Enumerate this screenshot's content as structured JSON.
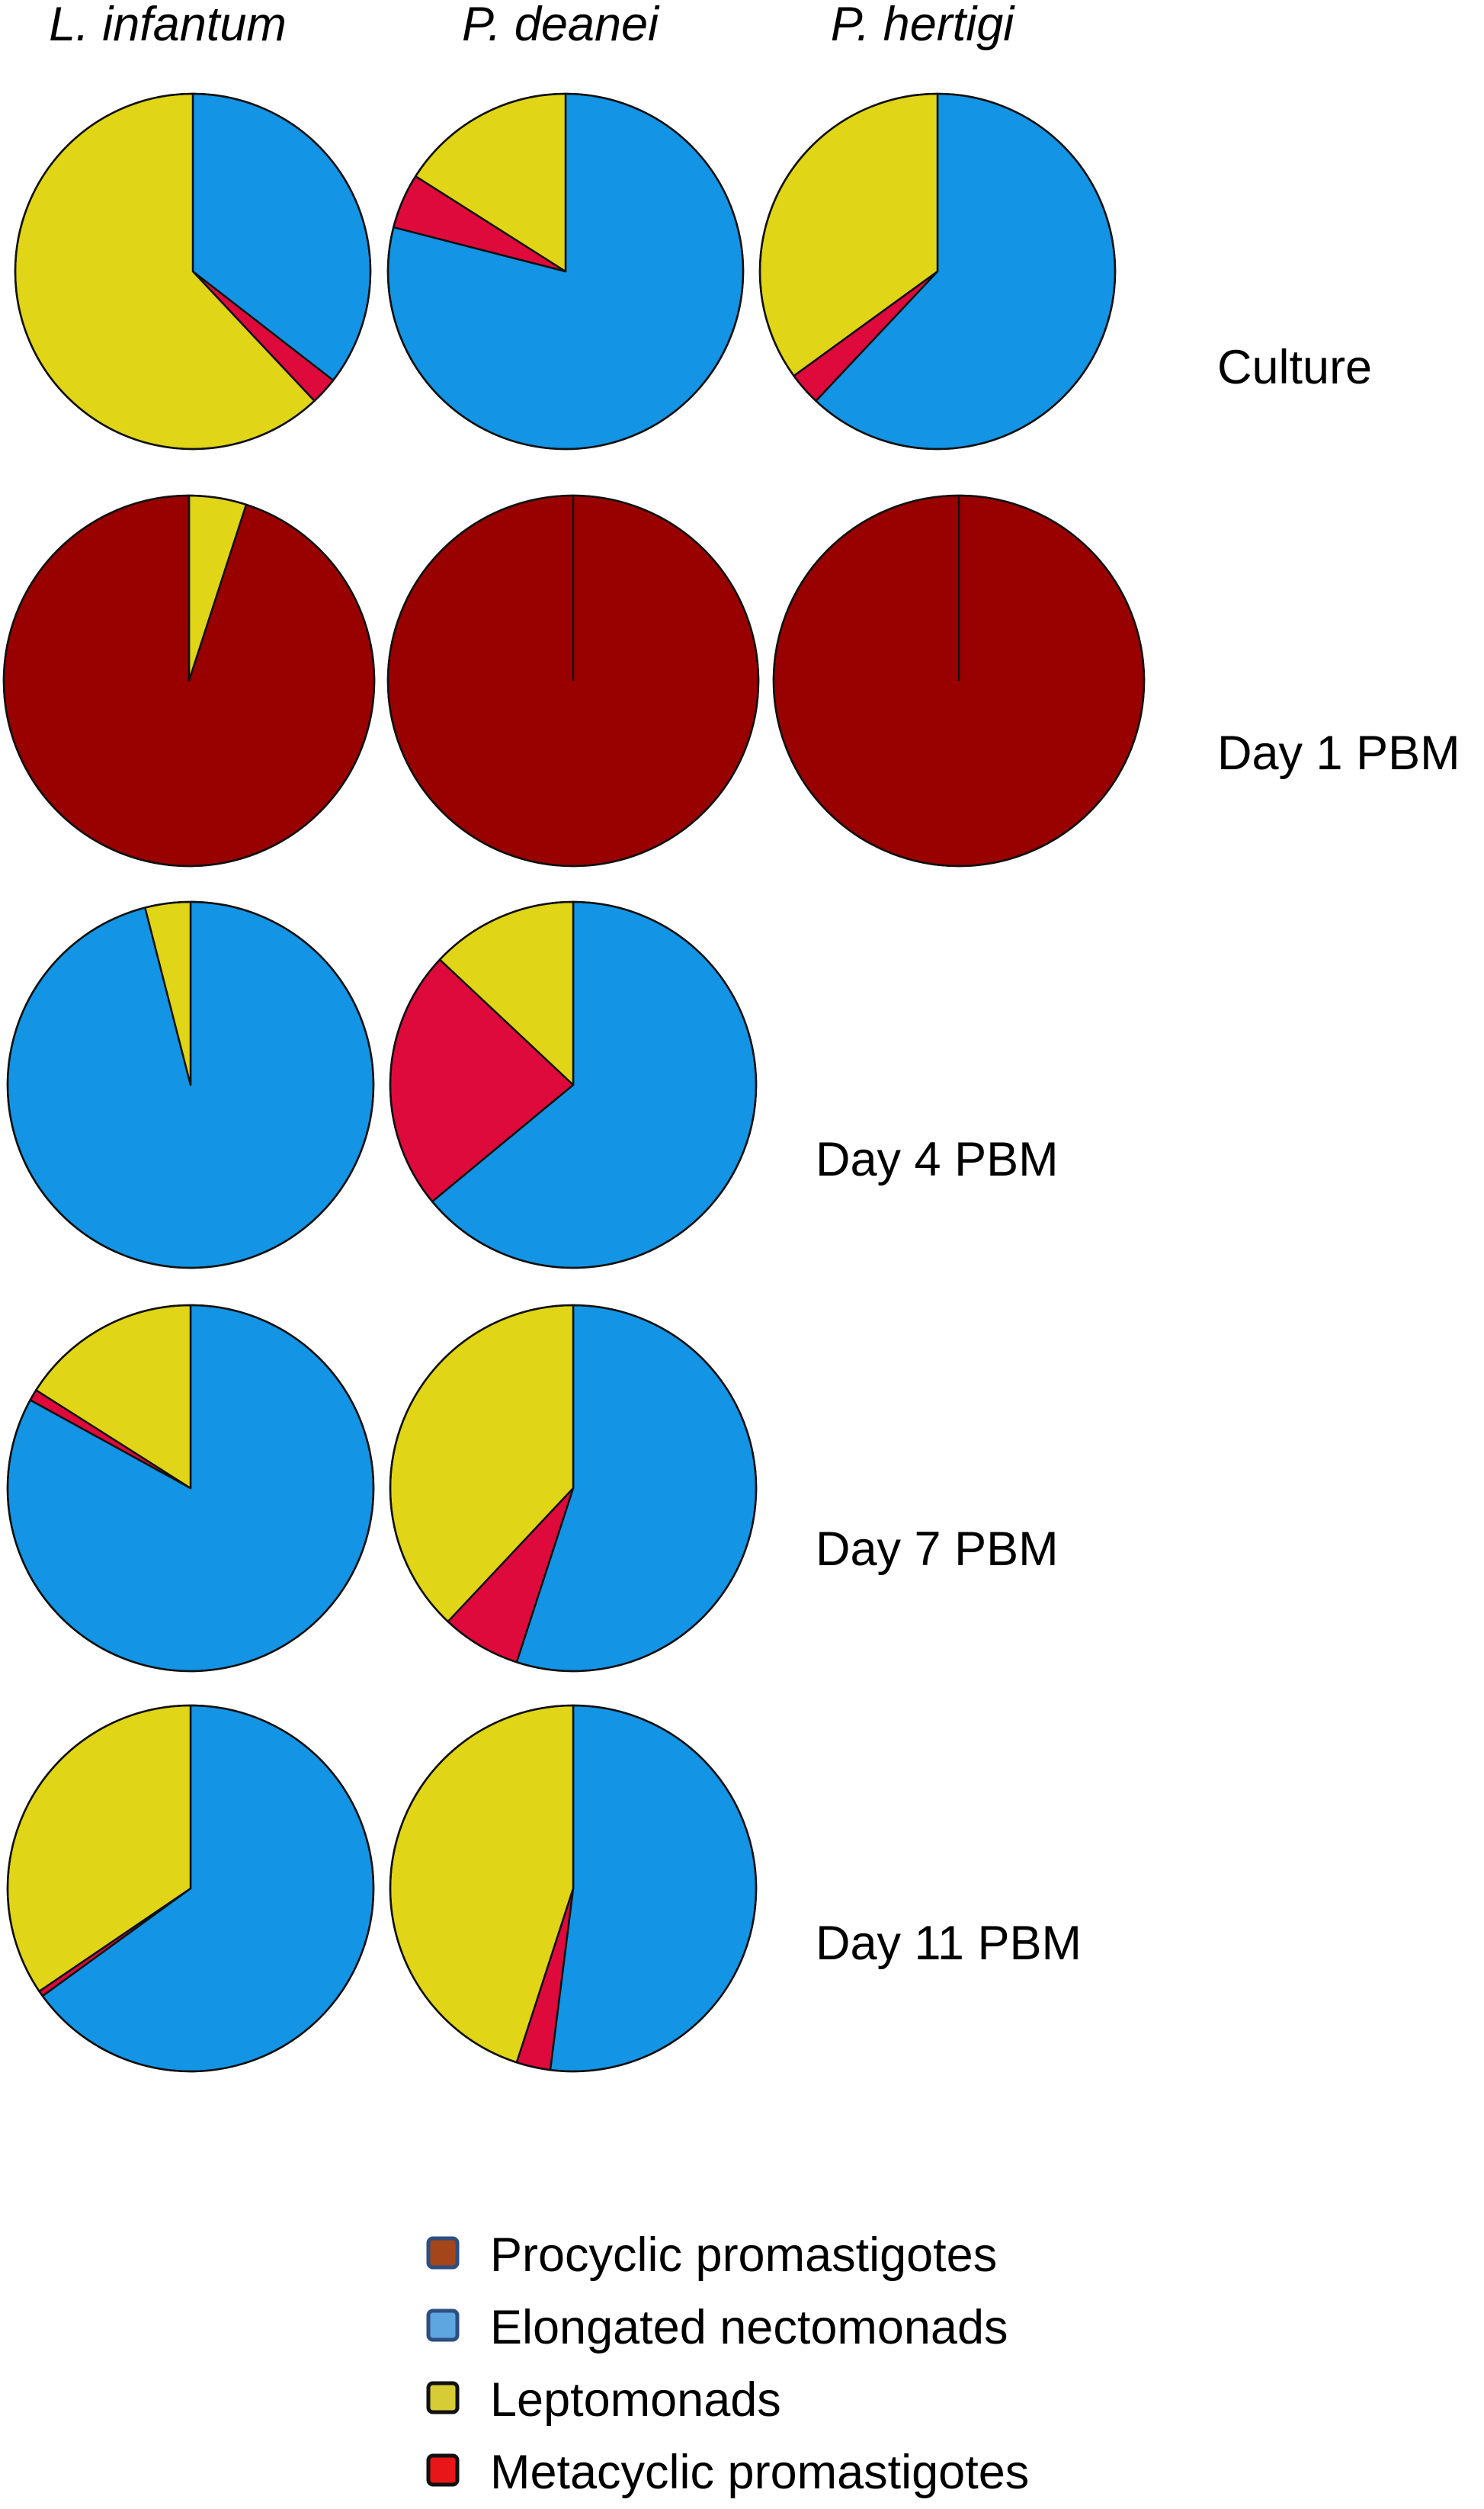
{
  "chart_data": {
    "type": "pie",
    "columns": [
      "L. infantum",
      "P. deanei",
      "P. hertigi"
    ],
    "rows": [
      "Culture",
      "Day 1 PBM",
      "Day 4 PBM",
      "Day 7 PBM",
      "Day 11 PBM"
    ],
    "categories": [
      "Procyclic promastigotes",
      "Elongated nectomonads",
      "Leptomonads",
      "Metacyclic promastigotes"
    ],
    "legend_placement": "bottom-center",
    "colors": {
      "Procyclic promastigotes": "#990000",
      "Elongated nectomonads": "#1394E4",
      "Leptomonads": "#E0D516",
      "Metacyclic promastigotes": "#DE0A3B"
    },
    "legend_swatch_colors": [
      "#A4451A",
      "#5DA6E0",
      "#D6CC35",
      "#E81519"
    ],
    "pies": [
      {
        "row": "Culture",
        "column": "L. infantum",
        "values": {
          "Procyclic promastigotes": 0,
          "Elongated nectomonads": 35.5,
          "Leptomonads": 62,
          "Metacyclic promastigotes": 2.5
        }
      },
      {
        "row": "Culture",
        "column": "P. deanei",
        "values": {
          "Procyclic promastigotes": 0,
          "Elongated nectomonads": 79,
          "Leptomonads": 16,
          "Metacyclic promastigotes": 5
        }
      },
      {
        "row": "Culture",
        "column": "P. hertigi",
        "values": {
          "Procyclic promastigotes": 0,
          "Elongated nectomonads": 62,
          "Leptomonads": 35,
          "Metacyclic promastigotes": 3
        }
      },
      {
        "row": "Day 1 PBM",
        "column": "L. infantum",
        "values": {
          "Procyclic promastigotes": 95,
          "Elongated nectomonads": 0,
          "Leptomonads": 5,
          "Metacyclic promastigotes": 0
        }
      },
      {
        "row": "Day 1 PBM",
        "column": "P. deanei",
        "values": {
          "Procyclic promastigotes": 100,
          "Elongated nectomonads": 0,
          "Leptomonads": 0,
          "Metacyclic promastigotes": 0
        }
      },
      {
        "row": "Day 1 PBM",
        "column": "P. hertigi",
        "values": {
          "Procyclic promastigotes": 100,
          "Elongated nectomonads": 0,
          "Leptomonads": 0,
          "Metacyclic promastigotes": 0
        }
      },
      {
        "row": "Day 4 PBM",
        "column": "L. infantum",
        "values": {
          "Procyclic promastigotes": 0,
          "Elongated nectomonads": 96,
          "Leptomonads": 4,
          "Metacyclic promastigotes": 0
        }
      },
      {
        "row": "Day 4 PBM",
        "column": "P. deanei",
        "values": {
          "Procyclic promastigotes": 0,
          "Elongated nectomonads": 64,
          "Leptomonads": 13,
          "Metacyclic promastigotes": 23
        }
      },
      {
        "row": "Day 7 PBM",
        "column": "L. infantum",
        "values": {
          "Procyclic promastigotes": 0,
          "Elongated nectomonads": 83,
          "Leptomonads": 16,
          "Metacyclic promastigotes": 1
        }
      },
      {
        "row": "Day 7 PBM",
        "column": "P. deanei",
        "values": {
          "Procyclic promastigotes": 0,
          "Elongated nectomonads": 55,
          "Leptomonads": 38,
          "Metacyclic promastigotes": 7
        }
      },
      {
        "row": "Day 11 PBM",
        "column": "L. infantum",
        "values": {
          "Procyclic promastigotes": 0,
          "Elongated nectomonads": 65,
          "Leptomonads": 34.5,
          "Metacyclic promastigotes": 0.5
        }
      },
      {
        "row": "Day 11 PBM",
        "column": "P. deanei",
        "values": {
          "Procyclic promastigotes": 0,
          "Elongated nectomonads": 52,
          "Leptomonads": 45,
          "Metacyclic promastigotes": 3
        }
      }
    ]
  }
}
